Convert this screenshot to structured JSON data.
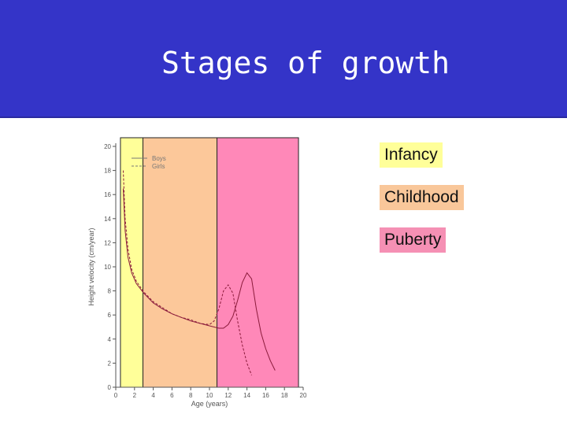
{
  "title": "Stages of growth",
  "legend_items": [
    {
      "label": "Infancy",
      "color": "#ffff99"
    },
    {
      "label": "Childhood",
      "color": "#f9c79a"
    },
    {
      "label": "Puberty",
      "color": "#f590b4"
    }
  ],
  "chart_data": {
    "type": "line",
    "title": "",
    "xlabel": "Age (years)",
    "ylabel": "Height velocity (cm/year)",
    "xlim": [
      0,
      20
    ],
    "ylim": [
      0,
      20
    ],
    "x_ticks": [
      0,
      2,
      4,
      6,
      8,
      10,
      12,
      14,
      16,
      18,
      20
    ],
    "y_ticks": [
      0,
      2,
      4,
      6,
      8,
      10,
      12,
      14,
      16,
      18,
      20
    ],
    "grid": false,
    "legend_position": "top-left",
    "bands": [
      {
        "label": "Infancy",
        "x_start": 0.5,
        "x_end": 2.9,
        "color": "#ffff99"
      },
      {
        "label": "Childhood",
        "x_start": 2.9,
        "x_end": 10.8,
        "color": "#fcc89a"
      },
      {
        "label": "Puberty",
        "x_start": 10.8,
        "x_end": 19.5,
        "color": "#ff88b8"
      }
    ],
    "series": [
      {
        "name": "Boys",
        "style": "solid",
        "color": "#8a1a3a",
        "x": [
          0.8,
          1.0,
          1.3,
          1.7,
          2.2,
          3.0,
          4.0,
          5.0,
          6.0,
          7.0,
          8.0,
          9.0,
          10.0,
          11.0,
          11.5,
          12.0,
          12.5,
          13.0,
          13.5,
          14.0,
          14.5,
          15.0,
          15.5,
          16.0,
          16.5,
          17.0
        ],
        "y": [
          16.5,
          13.0,
          10.8,
          9.5,
          8.6,
          7.8,
          7.0,
          6.5,
          6.1,
          5.8,
          5.5,
          5.3,
          5.1,
          4.9,
          4.9,
          5.2,
          5.9,
          7.2,
          8.7,
          9.5,
          9.0,
          6.5,
          4.5,
          3.2,
          2.2,
          1.4
        ]
      },
      {
        "name": "Girls",
        "style": "dashed",
        "color": "#8a1a3a",
        "x": [
          0.8,
          1.0,
          1.3,
          1.7,
          2.2,
          3.0,
          4.0,
          5.0,
          6.0,
          7.0,
          8.0,
          9.0,
          10.0,
          10.5,
          11.0,
          11.5,
          12.0,
          12.5,
          13.0,
          13.5,
          14.0,
          14.5
        ],
        "y": [
          18.0,
          14.0,
          11.5,
          9.8,
          8.8,
          7.9,
          7.1,
          6.6,
          6.1,
          5.8,
          5.6,
          5.3,
          5.2,
          5.5,
          6.5,
          8.0,
          8.5,
          7.8,
          5.5,
          3.5,
          2.0,
          1.0
        ]
      }
    ]
  }
}
